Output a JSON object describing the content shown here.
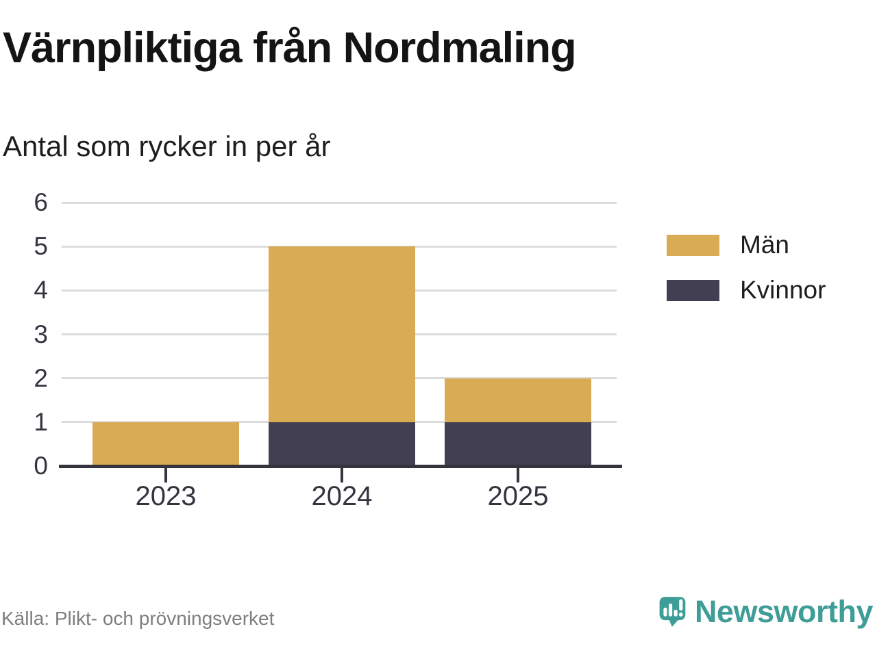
{
  "header": {
    "title": "Värnpliktiga från Nordmaling",
    "subtitle": "Antal som rycker in per år"
  },
  "chart_data": {
    "type": "bar",
    "stacked": true,
    "title": "Värnpliktiga från Nordmaling",
    "subtitle": "Antal som rycker in per år",
    "categories": [
      "2023",
      "2024",
      "2025"
    ],
    "series": [
      {
        "name": "Kvinnor",
        "color": "#413F51",
        "values": [
          0,
          1,
          1
        ]
      },
      {
        "name": "Män",
        "color": "#D9AB55",
        "values": [
          1,
          4,
          1
        ]
      }
    ],
    "stack_totals": [
      1,
      5,
      2
    ],
    "legend_order": [
      "Män",
      "Kvinnor"
    ],
    "xlabel": "",
    "ylabel": "",
    "ylim": [
      0,
      6
    ],
    "yticks": [
      0,
      1,
      2,
      3,
      4,
      5,
      6
    ],
    "grid": true,
    "legend_position": "right"
  },
  "footer": {
    "source": "Källa: Plikt- och prövningsverket",
    "logo_text": "Newsworthy"
  },
  "icons": {
    "logo": "newsworthy-speech-bubble-chart-icon"
  },
  "colors": {
    "men": "#D9AB55",
    "women": "#413F51",
    "brand_teal": "#3E9D96",
    "grid": "#DCDCDC",
    "axis": "#35343E",
    "title_text": "#141414",
    "source_text": "#7E7E7E"
  }
}
